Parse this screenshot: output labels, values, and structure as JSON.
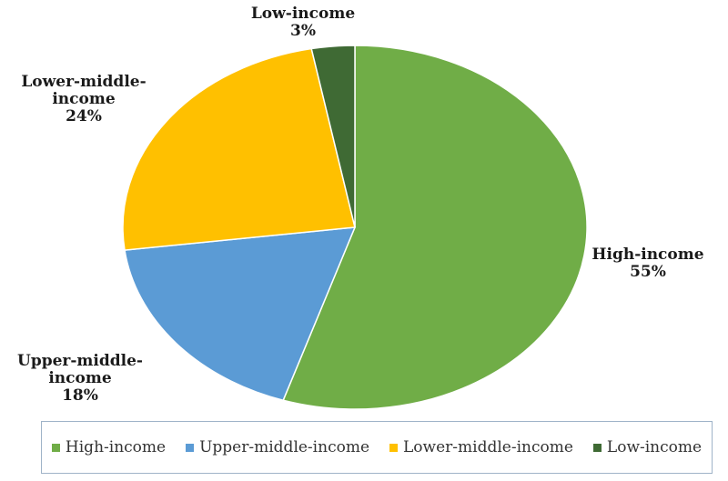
{
  "chart_data": {
    "type": "pie",
    "slices": [
      {
        "name": "High-income",
        "value": 55,
        "label": "55%",
        "color": "#70ad47"
      },
      {
        "name": "Upper-middle-income",
        "value": 18,
        "label": "18%",
        "color": "#5b9bd5"
      },
      {
        "name": "Lower-middle-income",
        "value": 24,
        "label": "24%",
        "color": "#ffc000"
      },
      {
        "name": "Low-income",
        "value": 3,
        "label": "3%",
        "color": "#3f6a34"
      }
    ],
    "label_lines": [
      [
        "High-income",
        "55%"
      ],
      [
        "Upper-middle-",
        "income",
        "18%"
      ],
      [
        "Lower-middle-",
        "income",
        "24%"
      ],
      [
        "Low-income",
        "3%"
      ]
    ],
    "legend": {
      "placement": "bottom",
      "items": [
        "High-income",
        "Upper-middle-income",
        "Lower-middle-income",
        "Low-income"
      ]
    },
    "start_angle_deg": 0,
    "direction": "clockwise"
  }
}
